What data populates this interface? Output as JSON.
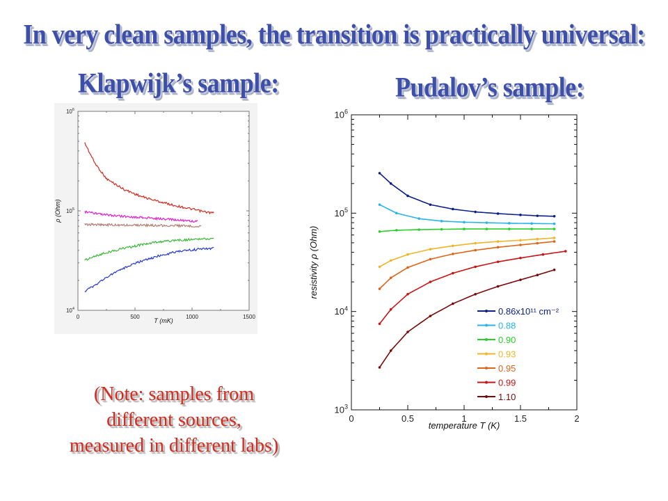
{
  "slide": {
    "title": "In very clean samples, the transition is practically universal:",
    "left_heading": "Klapwijk’s sample:",
    "right_heading": "Pudalov’s sample:",
    "note_lines": [
      "(Note: samples from",
      "different sources,",
      "measured in different labs)"
    ]
  },
  "chart_data": [
    {
      "type": "line",
      "title": "",
      "xlabel": "T (mK)",
      "ylabel": "ρ (Ohm)",
      "xlim": [
        0,
        1500
      ],
      "ylim": [
        10000,
        1000000
      ],
      "yscale": "log",
      "xticks": [
        0,
        500,
        1000,
        1500
      ],
      "yticks": [
        10000,
        100000,
        1000000
      ],
      "xtick_labels": [
        "0",
        "500",
        "1000",
        "1500"
      ],
      "ytick_labels": [
        "10⁴",
        "10⁵",
        "10⁶"
      ],
      "grid": false,
      "legend": "none",
      "series": [
        {
          "color": "#d42a1e",
          "x": [
            60,
            150,
            250,
            400,
            550,
            700,
            850,
            1000,
            1100,
            1190
          ],
          "y": [
            480000,
            300000,
            210000,
            165000,
            140000,
            125000,
            113000,
            104000,
            98000,
            95000
          ]
        },
        {
          "color": "#e020d0",
          "x": [
            60,
            200,
            400,
            600,
            800,
            1000,
            1050
          ],
          "y": [
            98000,
            92000,
            88000,
            85000,
            82000,
            79000,
            78000
          ]
        },
        {
          "color": "#b08070",
          "x": [
            60,
            200,
            400,
            600,
            800,
            1000,
            1080
          ],
          "y": [
            73000,
            72500,
            72000,
            71500,
            71000,
            70500,
            70000
          ]
        },
        {
          "color": "#38b838",
          "x": [
            60,
            150,
            250,
            400,
            550,
            700,
            850,
            1000,
            1100,
            1190
          ],
          "y": [
            32000,
            35000,
            38000,
            42000,
            45500,
            48500,
            50500,
            51500,
            52000,
            52500
          ]
        },
        {
          "color": "#2438d8",
          "x": [
            60,
            150,
            250,
            400,
            550,
            700,
            850,
            1000,
            1100,
            1190
          ],
          "y": [
            15500,
            18000,
            21500,
            26500,
            31000,
            35000,
            38500,
            40500,
            41500,
            42000
          ]
        }
      ]
    },
    {
      "type": "line",
      "title": "",
      "xlabel": "temperature T (K)",
      "ylabel": "resistivity ρ (Ohm)",
      "xlim": [
        0,
        2
      ],
      "ylim": [
        1000,
        1000000
      ],
      "yscale": "log",
      "xticks": [
        0,
        0.5,
        1,
        1.5,
        2
      ],
      "yticks": [
        1000,
        10000,
        100000,
        1000000
      ],
      "xtick_labels": [
        "0",
        "0.5",
        "1",
        "1.5",
        "2"
      ],
      "ytick_labels": [
        "10³",
        "10⁴",
        "10⁵",
        "10⁶"
      ],
      "grid": false,
      "legend": "bottom-right",
      "series": [
        {
          "name": "0.86x10¹¹ cm⁻²",
          "color": "#0a1e8c",
          "x": [
            0.25,
            0.35,
            0.5,
            0.7,
            0.9,
            1.1,
            1.3,
            1.5,
            1.65,
            1.8
          ],
          "y": [
            255000,
            200000,
            150000,
            122000,
            110000,
            103000,
            99000,
            96000,
            94000,
            93000
          ]
        },
        {
          "name": "0.88",
          "color": "#28b4e8",
          "x": [
            0.25,
            0.4,
            0.6,
            0.8,
            1.0,
            1.2,
            1.4,
            1.6,
            1.8
          ],
          "y": [
            122000,
            100000,
            88000,
            83000,
            81000,
            80000,
            79000,
            78500,
            78000
          ]
        },
        {
          "name": "0.90",
          "color": "#28d028",
          "x": [
            0.25,
            0.4,
            0.6,
            0.8,
            1.0,
            1.2,
            1.4,
            1.6,
            1.8
          ],
          "y": [
            65000,
            67000,
            68000,
            68500,
            69000,
            69000,
            69000,
            69000,
            69000
          ]
        },
        {
          "name": "0.93",
          "color": "#f0b428",
          "x": [
            0.25,
            0.35,
            0.5,
            0.7,
            0.9,
            1.1,
            1.3,
            1.5,
            1.65,
            1.8
          ],
          "y": [
            28500,
            33000,
            38000,
            43000,
            46500,
            49500,
            51500,
            53000,
            54500,
            56000
          ]
        },
        {
          "name": "0.95",
          "color": "#e06418",
          "x": [
            0.25,
            0.35,
            0.5,
            0.7,
            0.9,
            1.1,
            1.3,
            1.5,
            1.65,
            1.8
          ],
          "y": [
            17000,
            22000,
            28000,
            34000,
            38500,
            42000,
            45000,
            47500,
            49500,
            51500
          ]
        },
        {
          "name": "0.99",
          "color": "#c81414",
          "x": [
            0.25,
            0.35,
            0.5,
            0.7,
            0.9,
            1.1,
            1.3,
            1.5,
            1.7,
            1.9
          ],
          "y": [
            7500,
            10500,
            15000,
            20000,
            24500,
            28500,
            32000,
            35000,
            38000,
            41000
          ]
        },
        {
          "name": "1.10",
          "color": "#7a0a0a",
          "x": [
            0.25,
            0.35,
            0.5,
            0.7,
            0.9,
            1.1,
            1.3,
            1.5,
            1.65,
            1.8
          ],
          "y": [
            2700,
            4000,
            6200,
            9000,
            12000,
            15000,
            18000,
            21000,
            23500,
            26500
          ]
        }
      ]
    }
  ]
}
